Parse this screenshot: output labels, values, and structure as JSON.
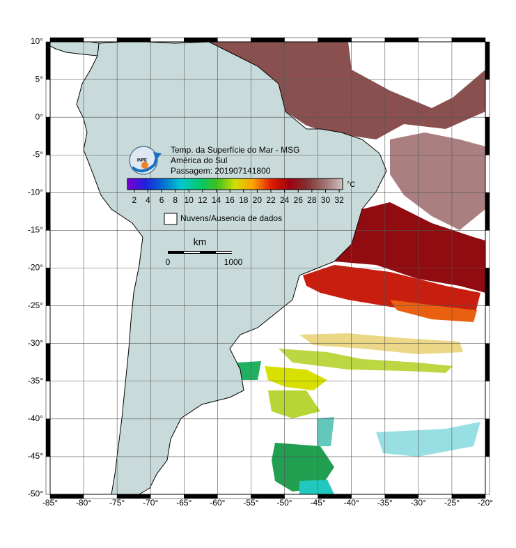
{
  "map": {
    "lonlim": [
      -85,
      -20
    ],
    "latlim": [
      -50,
      10
    ],
    "lat_ticks": [
      {
        "value": 10,
        "label": "10°"
      },
      {
        "value": 5,
        "label": "5°"
      },
      {
        "value": 0,
        "label": "0°"
      },
      {
        "value": -5,
        "label": "-5°"
      },
      {
        "value": -10,
        "label": "-10°"
      },
      {
        "value": -15,
        "label": "-15°"
      },
      {
        "value": -20,
        "label": "-20°"
      },
      {
        "value": -25,
        "label": "-25°"
      },
      {
        "value": -30,
        "label": "-30°"
      },
      {
        "value": -35,
        "label": "-35°"
      },
      {
        "value": -40,
        "label": "-40°"
      },
      {
        "value": -45,
        "label": "-45°"
      },
      {
        "value": -50,
        "label": "-50°"
      }
    ],
    "lon_ticks": [
      {
        "value": -85,
        "label": "-85°"
      },
      {
        "value": -80,
        "label": "-80°"
      },
      {
        "value": -75,
        "label": "-75°"
      },
      {
        "value": -70,
        "label": "-70°"
      },
      {
        "value": -65,
        "label": "-65°"
      },
      {
        "value": -60,
        "label": "-60°"
      },
      {
        "value": -55,
        "label": "-55°"
      },
      {
        "value": -50,
        "label": "-50°"
      },
      {
        "value": -45,
        "label": "-45°"
      },
      {
        "value": -40,
        "label": "-40°"
      },
      {
        "value": -35,
        "label": "-35°"
      },
      {
        "value": -30,
        "label": "-30°"
      },
      {
        "value": -25,
        "label": "-25°"
      },
      {
        "value": -20,
        "label": "-20°"
      }
    ],
    "title_lines": [
      "Temp. da Superfície do Mar - MSG",
      "América do Sul",
      "Passagem: 201907141800"
    ],
    "logo_text": "INPE",
    "colorbar": {
      "range": [
        1,
        32.5
      ],
      "ticks": [
        2,
        4,
        6,
        8,
        10,
        12,
        14,
        16,
        18,
        20,
        22,
        24,
        26,
        28,
        30,
        32
      ],
      "unit": "°C",
      "colors": [
        "#7a00d0",
        "#2020e0",
        "#0070d0",
        "#00c8d0",
        "#00c870",
        "#40c020",
        "#d0e000",
        "#ffa000",
        "#e02000",
        "#a00010",
        "#803030",
        "#a07070",
        "#d0c0c0"
      ]
    },
    "legend": "Nuvens/Ausencia de dados",
    "scale": {
      "unit": "km",
      "labels": [
        0,
        1000
      ]
    }
  }
}
